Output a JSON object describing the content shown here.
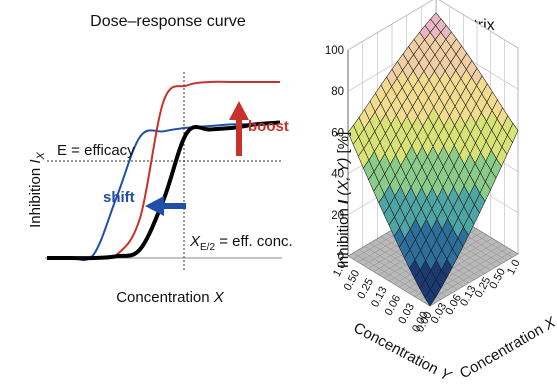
{
  "chart_data": [
    {
      "type": "line",
      "title": "Dose–response curve",
      "xlabel": "Concentration X",
      "ylabel": "Inhibition I_X",
      "xlim": [
        0,
        10
      ],
      "ylim": [
        0,
        1
      ],
      "grid": false,
      "series": [
        {
          "name": "",
          "color": "#000000",
          "x": [
            0,
            1,
            2,
            3,
            4,
            5,
            6,
            7,
            8,
            9,
            10
          ],
          "values": [
            0.0,
            0.0,
            0.0,
            0.01,
            0.05,
            0.33,
            0.71,
            0.73,
            0.74,
            0.76,
            0.77
          ]
        },
        {
          "name": "",
          "color": "#1f4fa8",
          "x": [
            0,
            1,
            2,
            3,
            4,
            5,
            6,
            7,
            8,
            9,
            10
          ],
          "values": [
            0.0,
            0.0,
            0.02,
            0.35,
            0.69,
            0.72,
            0.74,
            0.75,
            0.76,
            0.76,
            0.77
          ]
        },
        {
          "name": "",
          "color": "#c8322b",
          "x": [
            0,
            1,
            2,
            3,
            4,
            5,
            6,
            7,
            8,
            9,
            10
          ],
          "values": [
            0.0,
            0.0,
            0.0,
            0.02,
            0.23,
            0.89,
            0.98,
            1.0,
            1.0,
            1.0,
            1.0
          ]
        }
      ],
      "annotations": {
        "efficacy": "E = efficacy",
        "shift": "shift",
        "boost": "boost",
        "half_conc_main": "X",
        "half_conc_sub": "E/2",
        "half_conc_tail": " = eff. conc."
      },
      "colors": {
        "baseline": "#000000",
        "shift": "#1f4fa8",
        "boost": "#c8322b"
      }
    },
    {
      "type": "surface",
      "title": "Dose matrix",
      "xlabel": "Concentration X",
      "ylabel": "Concentration Y",
      "zlabel": "Inhibition I (X, Y) [%]",
      "x_ticks": [
        "0.00",
        "0.03",
        "0.06",
        "0.13",
        "0.25",
        "0.50",
        "1.0"
      ],
      "y_ticks": [
        "0.00",
        "0.03",
        "0.06",
        "0.13",
        "0.25",
        "0.50",
        "1.0"
      ],
      "z_ticks": [
        "0",
        "20",
        "40",
        "60",
        "80",
        "100"
      ],
      "zlim": [
        0,
        100
      ],
      "colormap": [
        "#1b3a73",
        "#2d6e9a",
        "#4ea5a3",
        "#8ccc8a",
        "#d8e277",
        "#f2dc8f",
        "#f1cfa6",
        "#e9b8c4"
      ]
    }
  ]
}
